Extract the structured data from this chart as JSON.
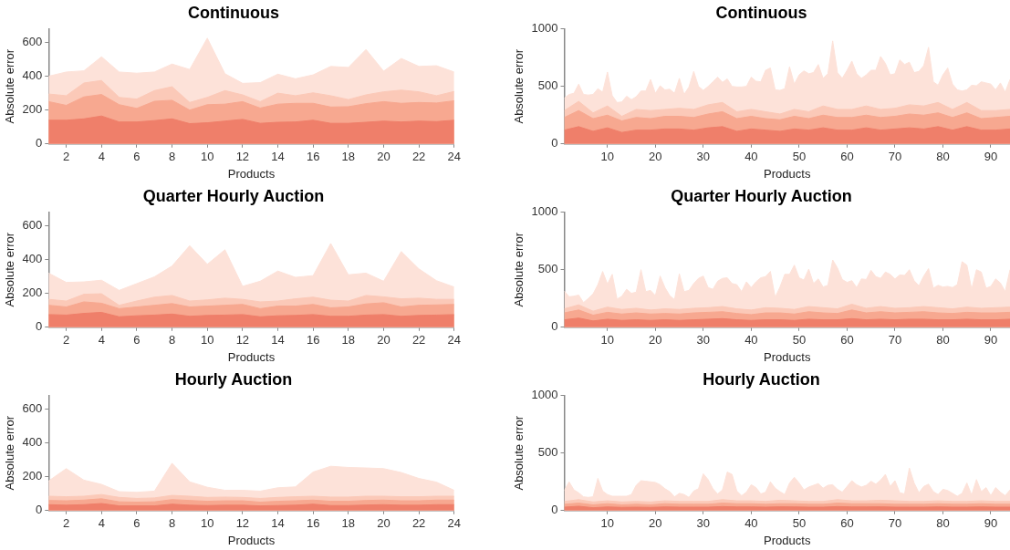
{
  "chart_data": [
    {
      "type": "area",
      "title": "Continuous",
      "xlabel": "Products",
      "ylabel": "Absolute error",
      "xlim": [
        1,
        24
      ],
      "xticks": [
        2,
        4,
        6,
        8,
        10,
        12,
        14,
        16,
        18,
        20,
        22,
        24
      ],
      "ylim": [
        0,
        680
      ],
      "yticks": [
        0,
        200,
        400,
        600
      ],
      "grid": false,
      "legend": false,
      "marker": "none",
      "x": [
        1,
        2,
        3,
        4,
        5,
        6,
        7,
        8,
        9,
        10,
        11,
        12,
        13,
        14,
        15,
        16,
        17,
        18,
        19,
        20,
        21,
        22,
        23,
        24
      ],
      "series": [
        {
          "color": "#fde2d9",
          "values": [
            400,
            425,
            432,
            515,
            425,
            418,
            425,
            472,
            440,
            625,
            415,
            358,
            362,
            412,
            385,
            408,
            458,
            452,
            558,
            430,
            505,
            458,
            462,
            425
          ]
        },
        {
          "color": "#fbc9b8",
          "values": [
            295,
            285,
            360,
            375,
            275,
            265,
            315,
            338,
            245,
            275,
            315,
            290,
            250,
            300,
            285,
            302,
            285,
            262,
            290,
            308,
            318,
            308,
            285,
            310
          ]
        },
        {
          "color": "#f7a890",
          "values": [
            250,
            228,
            278,
            292,
            232,
            210,
            252,
            258,
            200,
            232,
            235,
            250,
            212,
            235,
            240,
            240,
            218,
            220,
            238,
            250,
            240,
            245,
            242,
            255
          ]
        },
        {
          "color": "#ef7f6a",
          "values": [
            140,
            140,
            148,
            165,
            130,
            130,
            138,
            148,
            120,
            125,
            135,
            145,
            122,
            128,
            130,
            140,
            122,
            122,
            128,
            135,
            130,
            135,
            132,
            140
          ]
        }
      ]
    },
    {
      "type": "area",
      "title": "Continuous",
      "xlabel": "Products",
      "ylabel": "Absolute error",
      "xlim": [
        1,
        94
      ],
      "xticks": [
        10,
        20,
        30,
        40,
        50,
        60,
        70,
        80,
        90
      ],
      "ylim": [
        0,
        1000
      ],
      "yticks": [
        0,
        500,
        1000
      ],
      "grid": false,
      "legend": false,
      "marker": "none",
      "series": [
        {
          "color": "#fde2d9",
          "x": [
            1,
            2,
            3,
            4,
            5,
            6,
            7,
            8,
            9,
            10,
            11,
            12,
            13,
            14,
            15,
            16,
            17,
            18,
            19,
            20,
            21,
            22,
            23,
            24,
            25,
            26,
            27,
            28,
            29,
            30,
            31,
            32,
            33,
            34,
            35,
            36,
            37,
            38,
            39,
            40,
            41,
            42,
            43,
            44,
            45,
            46,
            47,
            48,
            49,
            50,
            51,
            52,
            53,
            54,
            55,
            56,
            57,
            58,
            59,
            60,
            61,
            62,
            63,
            64,
            65,
            66,
            67,
            68,
            69,
            70,
            71,
            72,
            73,
            74,
            75,
            76,
            77,
            78,
            79,
            80,
            81,
            82,
            83,
            84,
            85,
            86,
            87,
            88,
            89,
            90,
            91,
            92,
            93,
            94
          ],
          "values": [
            398,
            430,
            440,
            520,
            430,
            425,
            430,
            480,
            450,
            625,
            420,
            360,
            365,
            415,
            385,
            410,
            460,
            460,
            560,
            440,
            505,
            470,
            475,
            440,
            570,
            430,
            495,
            630,
            500,
            465,
            500,
            540,
            580,
            535,
            565,
            500,
            495,
            495,
            500,
            580,
            545,
            540,
            640,
            660,
            470,
            465,
            480,
            670,
            520,
            600,
            635,
            610,
            620,
            690,
            570,
            610,
            895,
            620,
            570,
            640,
            720,
            610,
            570,
            600,
            640,
            640,
            760,
            700,
            600,
            610,
            730,
            690,
            710,
            620,
            630,
            680,
            840,
            540,
            510,
            600,
            660,
            520,
            470,
            460,
            470,
            510,
            505,
            540,
            530,
            520,
            470,
            530,
            450,
            560
          ]
        },
        {
          "color": "#fbc9b8",
          "x": [
            1,
            4,
            7,
            10,
            13,
            16,
            19,
            22,
            25,
            28,
            31,
            34,
            37,
            40,
            43,
            46,
            49,
            52,
            55,
            58,
            61,
            64,
            67,
            70,
            73,
            76,
            79,
            82,
            85,
            88,
            91,
            94
          ],
          "values": [
            290,
            370,
            270,
            330,
            240,
            300,
            290,
            300,
            310,
            300,
            340,
            360,
            280,
            300,
            280,
            260,
            300,
            280,
            330,
            300,
            300,
            330,
            300,
            310,
            340,
            330,
            360,
            300,
            360,
            290,
            290,
            300
          ]
        },
        {
          "color": "#f7a890",
          "x": [
            1,
            4,
            7,
            10,
            13,
            16,
            19,
            22,
            25,
            28,
            31,
            34,
            37,
            40,
            43,
            46,
            49,
            52,
            55,
            58,
            61,
            64,
            67,
            70,
            73,
            76,
            79,
            82,
            85,
            88,
            91,
            94
          ],
          "values": [
            230,
            290,
            220,
            250,
            200,
            230,
            220,
            240,
            240,
            230,
            260,
            280,
            220,
            240,
            220,
            210,
            240,
            220,
            250,
            230,
            230,
            250,
            230,
            240,
            260,
            250,
            270,
            230,
            270,
            220,
            230,
            240
          ]
        },
        {
          "color": "#ef7f6a",
          "x": [
            1,
            4,
            7,
            10,
            13,
            16,
            19,
            22,
            25,
            28,
            31,
            34,
            37,
            40,
            43,
            46,
            49,
            52,
            55,
            58,
            61,
            64,
            67,
            70,
            73,
            76,
            79,
            82,
            85,
            88,
            91,
            94
          ],
          "values": [
            120,
            150,
            110,
            140,
            100,
            120,
            120,
            130,
            130,
            120,
            140,
            150,
            110,
            130,
            120,
            110,
            130,
            120,
            140,
            120,
            120,
            140,
            120,
            130,
            140,
            130,
            150,
            120,
            150,
            120,
            120,
            130
          ]
        }
      ]
    },
    {
      "type": "area",
      "title": "Quarter Hourly Auction",
      "xlabel": "Products",
      "ylabel": "Absolute error",
      "xlim": [
        1,
        24
      ],
      "xticks": [
        2,
        4,
        6,
        8,
        10,
        12,
        14,
        16,
        18,
        20,
        22,
        24
      ],
      "ylim": [
        0,
        680
      ],
      "yticks": [
        0,
        200,
        400,
        600
      ],
      "grid": false,
      "legend": false,
      "marker": "none",
      "x": [
        1,
        2,
        3,
        4,
        5,
        6,
        7,
        8,
        9,
        10,
        11,
        12,
        13,
        14,
        15,
        16,
        17,
        18,
        19,
        20,
        21,
        22,
        23,
        24
      ],
      "series": [
        {
          "color": "#fde2d9",
          "values": [
            320,
            265,
            268,
            278,
            218,
            258,
            298,
            362,
            482,
            372,
            458,
            242,
            272,
            332,
            295,
            305,
            495,
            310,
            320,
            272,
            448,
            345,
            275,
            238
          ]
        },
        {
          "color": "#fbc9b8",
          "values": [
            165,
            155,
            195,
            198,
            130,
            155,
            178,
            188,
            155,
            162,
            172,
            165,
            150,
            155,
            168,
            178,
            160,
            155,
            188,
            180,
            168,
            172,
            165,
            165
          ]
        },
        {
          "color": "#f7a890",
          "values": [
            130,
            120,
            150,
            142,
            110,
            120,
            130,
            140,
            120,
            125,
            130,
            135,
            110,
            125,
            125,
            135,
            115,
            120,
            138,
            145,
            120,
            130,
            132,
            135
          ]
        },
        {
          "color": "#ef7f6a",
          "values": [
            75,
            72,
            82,
            88,
            62,
            68,
            72,
            78,
            65,
            70,
            72,
            75,
            62,
            68,
            70,
            75,
            65,
            65,
            72,
            75,
            65,
            70,
            72,
            75
          ]
        }
      ]
    },
    {
      "type": "area",
      "title": "Quarter Hourly Auction",
      "xlabel": "Products",
      "ylabel": "Absolute error",
      "xlim": [
        1,
        94
      ],
      "xticks": [
        10,
        20,
        30,
        40,
        50,
        60,
        70,
        80,
        90
      ],
      "ylim": [
        0,
        1000
      ],
      "yticks": [
        0,
        500,
        1000
      ],
      "grid": false,
      "legend": false,
      "marker": "none",
      "series": [
        {
          "color": "#fde2d9",
          "x": [
            1,
            2,
            3,
            4,
            5,
            6,
            7,
            8,
            9,
            10,
            11,
            12,
            13,
            14,
            15,
            16,
            17,
            18,
            19,
            20,
            21,
            22,
            23,
            24,
            25,
            26,
            27,
            28,
            29,
            30,
            31,
            32,
            33,
            34,
            35,
            36,
            37,
            38,
            39,
            40,
            41,
            42,
            43,
            44,
            45,
            46,
            47,
            48,
            49,
            50,
            51,
            52,
            53,
            54,
            55,
            56,
            57,
            58,
            59,
            60,
            61,
            62,
            63,
            64,
            65,
            66,
            67,
            68,
            69,
            70,
            71,
            72,
            73,
            74,
            75,
            76,
            77,
            78,
            79,
            80,
            81,
            82,
            83,
            84,
            85,
            86,
            87,
            88,
            89,
            90,
            91,
            92,
            93,
            94
          ],
          "values": [
            315,
            265,
            270,
            280,
            215,
            250,
            290,
            370,
            485,
            375,
            460,
            245,
            270,
            330,
            295,
            305,
            500,
            310,
            320,
            275,
            445,
            345,
            275,
            240,
            465,
            310,
            320,
            380,
            425,
            445,
            345,
            330,
            400,
            425,
            430,
            380,
            370,
            310,
            395,
            345,
            395,
            430,
            440,
            485,
            260,
            350,
            460,
            460,
            540,
            430,
            410,
            505,
            380,
            420,
            350,
            365,
            585,
            515,
            415,
            390,
            405,
            345,
            420,
            415,
            495,
            440,
            425,
            480,
            460,
            420,
            455,
            450,
            500,
            405,
            360,
            445,
            510,
            340,
            365,
            350,
            355,
            345,
            370,
            570,
            540,
            330,
            500,
            480,
            340,
            355,
            420,
            385,
            310,
            500
          ]
        },
        {
          "color": "#fbc9b8",
          "x": [
            1,
            4,
            7,
            10,
            13,
            16,
            19,
            22,
            25,
            28,
            31,
            34,
            37,
            40,
            43,
            46,
            49,
            52,
            55,
            58,
            61,
            64,
            67,
            70,
            73,
            76,
            79,
            82,
            85,
            88,
            91,
            94
          ],
          "values": [
            160,
            195,
            140,
            175,
            155,
            165,
            150,
            160,
            155,
            165,
            170,
            180,
            160,
            150,
            170,
            165,
            155,
            180,
            170,
            160,
            200,
            165,
            180,
            165,
            170,
            180,
            170,
            160,
            175,
            165,
            170,
            175
          ]
        },
        {
          "color": "#f7a890",
          "x": [
            1,
            4,
            7,
            10,
            13,
            16,
            19,
            22,
            25,
            28,
            31,
            34,
            37,
            40,
            43,
            46,
            49,
            52,
            55,
            58,
            61,
            64,
            67,
            70,
            73,
            76,
            79,
            82,
            85,
            88,
            91,
            94
          ],
          "values": [
            125,
            150,
            105,
            130,
            115,
            125,
            115,
            120,
            115,
            125,
            130,
            135,
            120,
            110,
            125,
            125,
            115,
            135,
            125,
            120,
            150,
            125,
            135,
            125,
            130,
            135,
            125,
            120,
            130,
            125,
            125,
            130
          ]
        },
        {
          "color": "#ef7f6a",
          "x": [
            1,
            4,
            7,
            10,
            13,
            16,
            19,
            22,
            25,
            28,
            31,
            34,
            37,
            40,
            43,
            46,
            49,
            52,
            55,
            58,
            61,
            64,
            67,
            70,
            73,
            76,
            79,
            82,
            85,
            88,
            91,
            94
          ],
          "values": [
            65,
            80,
            55,
            70,
            60,
            65,
            60,
            65,
            60,
            65,
            70,
            75,
            65,
            60,
            65,
            65,
            60,
            70,
            65,
            65,
            75,
            65,
            70,
            65,
            70,
            70,
            65,
            65,
            70,
            65,
            65,
            70
          ]
        }
      ]
    },
    {
      "type": "area",
      "title": "Hourly Auction",
      "xlabel": "Products",
      "ylabel": "Absolute error",
      "xlim": [
        1,
        24
      ],
      "xticks": [
        2,
        4,
        6,
        8,
        10,
        12,
        14,
        16,
        18,
        20,
        22,
        24
      ],
      "ylim": [
        0,
        680
      ],
      "yticks": [
        0,
        200,
        400,
        600
      ],
      "grid": false,
      "legend": false,
      "marker": "none",
      "x": [
        1,
        2,
        3,
        4,
        5,
        6,
        7,
        8,
        9,
        10,
        11,
        12,
        13,
        14,
        15,
        16,
        17,
        18,
        19,
        20,
        21,
        22,
        23,
        24
      ],
      "series": [
        {
          "color": "#fde2d9",
          "values": [
            175,
            248,
            180,
            155,
            112,
            108,
            115,
            280,
            170,
            138,
            120,
            120,
            115,
            135,
            140,
            228,
            262,
            255,
            252,
            248,
            225,
            190,
            168,
            120
          ]
        },
        {
          "color": "#fbc9b8",
          "values": [
            85,
            82,
            85,
            95,
            78,
            72,
            75,
            90,
            85,
            78,
            80,
            78,
            72,
            78,
            82,
            85,
            80,
            80,
            85,
            85,
            82,
            82,
            85,
            85
          ]
        },
        {
          "color": "#f7a890",
          "values": [
            60,
            58,
            62,
            70,
            52,
            50,
            52,
            65,
            60,
            55,
            58,
            58,
            50,
            55,
            58,
            62,
            55,
            55,
            60,
            62,
            58,
            58,
            62,
            62
          ]
        },
        {
          "color": "#ef7f6a",
          "values": [
            35,
            32,
            35,
            42,
            28,
            28,
            28,
            38,
            32,
            30,
            32,
            32,
            28,
            30,
            32,
            38,
            30,
            30,
            33,
            35,
            32,
            32,
            35,
            35
          ]
        }
      ]
    },
    {
      "type": "area",
      "title": "Hourly Auction",
      "xlabel": "Products",
      "ylabel": "Absolute error",
      "xlim": [
        1,
        94
      ],
      "xticks": [
        10,
        20,
        30,
        40,
        50,
        60,
        70,
        80,
        90
      ],
      "ylim": [
        0,
        1000
      ],
      "yticks": [
        0,
        500,
        1000
      ],
      "grid": false,
      "legend": false,
      "marker": "none",
      "series": [
        {
          "color": "#fde2d9",
          "x": [
            1,
            2,
            3,
            4,
            5,
            6,
            7,
            8,
            9,
            10,
            11,
            12,
            13,
            14,
            15,
            16,
            17,
            18,
            19,
            20,
            21,
            22,
            23,
            24,
            25,
            26,
            27,
            28,
            29,
            30,
            31,
            32,
            33,
            34,
            35,
            36,
            37,
            38,
            39,
            40,
            41,
            42,
            43,
            44,
            45,
            46,
            47,
            48,
            49,
            50,
            51,
            52,
            53,
            54,
            55,
            56,
            57,
            58,
            59,
            60,
            61,
            62,
            63,
            64,
            65,
            66,
            67,
            68,
            69,
            70,
            71,
            72,
            73,
            74,
            75,
            76,
            77,
            78,
            79,
            80,
            81,
            82,
            83,
            84,
            85,
            86,
            87,
            88,
            89,
            90,
            91,
            92,
            93,
            94
          ],
          "values": [
            175,
            250,
            180,
            155,
            120,
            115,
            120,
            280,
            170,
            140,
            125,
            125,
            125,
            125,
            140,
            220,
            260,
            255,
            250,
            245,
            225,
            190,
            165,
            120,
            150,
            140,
            115,
            170,
            190,
            320,
            270,
            190,
            145,
            180,
            335,
            315,
            170,
            130,
            160,
            225,
            200,
            145,
            160,
            250,
            195,
            165,
            140,
            240,
            290,
            240,
            180,
            205,
            220,
            235,
            195,
            220,
            225,
            185,
            160,
            210,
            260,
            225,
            205,
            220,
            255,
            230,
            265,
            315,
            210,
            260,
            155,
            145,
            370,
            240,
            155,
            210,
            230,
            165,
            140,
            185,
            175,
            150,
            125,
            150,
            240,
            135,
            270,
            165,
            200,
            130,
            200,
            160,
            130,
            180
          ]
        },
        {
          "color": "#fbc9b8",
          "x": [
            1,
            4,
            7,
            10,
            13,
            16,
            19,
            22,
            25,
            28,
            31,
            34,
            37,
            40,
            43,
            46,
            49,
            52,
            55,
            58,
            61,
            64,
            67,
            70,
            73,
            76,
            79,
            82,
            85,
            88,
            91,
            94
          ],
          "values": [
            80,
            95,
            75,
            85,
            75,
            80,
            75,
            85,
            80,
            80,
            80,
            95,
            85,
            85,
            80,
            90,
            85,
            80,
            80,
            95,
            85,
            85,
            90,
            85,
            80,
            80,
            85,
            80,
            80,
            85,
            80,
            80
          ]
        },
        {
          "color": "#f7a890",
          "x": [
            1,
            4,
            7,
            10,
            13,
            16,
            19,
            22,
            25,
            28,
            31,
            34,
            37,
            40,
            43,
            46,
            49,
            52,
            55,
            58,
            61,
            64,
            67,
            70,
            73,
            76,
            79,
            82,
            85,
            88,
            91,
            94
          ],
          "values": [
            55,
            65,
            50,
            60,
            50,
            55,
            50,
            60,
            55,
            55,
            55,
            65,
            60,
            60,
            55,
            60,
            60,
            55,
            55,
            65,
            60,
            60,
            60,
            55,
            55,
            55,
            60,
            55,
            55,
            60,
            55,
            55
          ]
        },
        {
          "color": "#ef7f6a",
          "x": [
            1,
            4,
            7,
            10,
            13,
            16,
            19,
            22,
            25,
            28,
            31,
            34,
            37,
            40,
            43,
            46,
            49,
            52,
            55,
            58,
            61,
            64,
            67,
            70,
            73,
            76,
            79,
            82,
            85,
            88,
            91,
            94
          ],
          "values": [
            30,
            38,
            25,
            32,
            28,
            30,
            28,
            32,
            30,
            30,
            30,
            35,
            32,
            32,
            30,
            33,
            32,
            30,
            30,
            35,
            32,
            32,
            33,
            30,
            30,
            30,
            32,
            30,
            30,
            32,
            30,
            30
          ]
        }
      ]
    }
  ]
}
